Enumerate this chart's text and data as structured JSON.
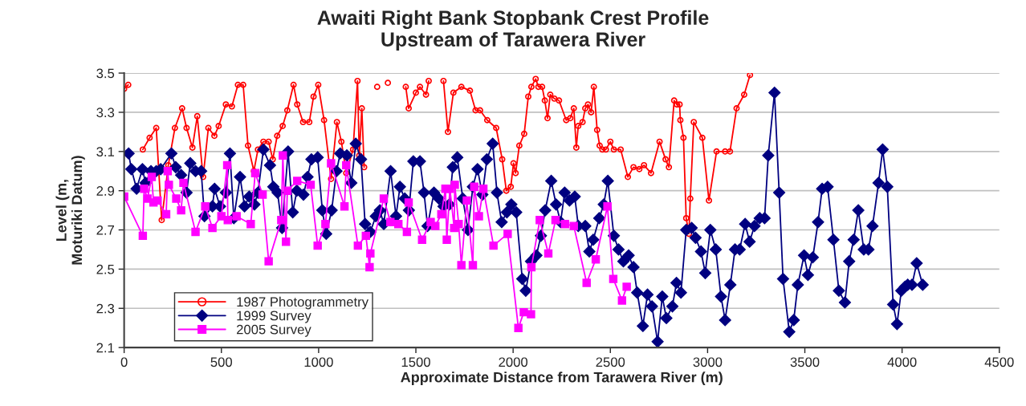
{
  "chart_data": {
    "type": "line",
    "title": "Awaiti Right Bank Stopbank Crest Profile\nUpstream of Tarawera River",
    "xlabel": "Approximate Distance from Tarawera River (m)",
    "ylabel": "Level (m,\nMoturiki Datum)",
    "xlim": [
      0,
      4500
    ],
    "xticks": [
      0,
      500,
      1000,
      1500,
      2000,
      2500,
      3000,
      3500,
      4000,
      4500
    ],
    "ylim": [
      2.1,
      3.5
    ],
    "yticks": [
      2.1,
      2.3,
      2.5,
      2.7,
      2.9,
      3.1,
      3.3,
      3.5
    ],
    "grid": "y",
    "legend": "bottom left",
    "line_style": "solid",
    "series": [
      {
        "name": "1987 Photogrammetry",
        "color": "#ff0000",
        "marker": "circle",
        "x": [
          0,
          21,
          60,
          96,
          131,
          165,
          193,
          227,
          261,
          298,
          321,
          351,
          376,
          406,
          433,
          464,
          486,
          523,
          554,
          585,
          612,
          637,
          667,
          688,
          716,
          743,
          764,
          787,
          815,
          839,
          871,
          890,
          920,
          952,
          974,
          998,
          1028,
          1064,
          1094,
          1117,
          1142,
          1177,
          1200,
          1209,
          1222,
          1234,
          1265,
          1301,
          1330,
          1356,
          1400,
          1448,
          1463,
          1500,
          1521,
          1552,
          1566,
          1600,
          1642,
          1665,
          1693,
          1734,
          1778,
          1807,
          1830,
          1867,
          1913,
          1944,
          1965,
          1988,
          2002,
          2013,
          2032,
          2057,
          2078,
          2094,
          2116,
          2130,
          2149,
          2163,
          2177,
          2191,
          2212,
          2236,
          2273,
          2294,
          2312,
          2325,
          2335,
          2357,
          2371,
          2385,
          2401,
          2415,
          2432,
          2445,
          2459,
          2477,
          2500,
          2518,
          2553,
          2590,
          2619,
          2649,
          2673,
          2709,
          2753,
          2784,
          2801,
          2828,
          2842,
          2856,
          2860,
          2876,
          2890,
          2904,
          2911,
          2929,
          2973,
          3007,
          3046,
          3090,
          3115,
          3149,
          3188,
          3218
        ],
        "values": [
          3.42,
          3.44,
          null,
          3.11,
          3.17,
          3.22,
          2.75,
          3.03,
          3.22,
          3.32,
          3.22,
          3.12,
          3.28,
          2.97,
          3.22,
          3.18,
          3.23,
          3.34,
          3.33,
          3.44,
          3.44,
          3.13,
          3.0,
          3.11,
          3.15,
          3.15,
          3.06,
          3.18,
          3.23,
          3.31,
          3.44,
          3.34,
          3.25,
          3.25,
          3.38,
          3.44,
          3.26,
          2.96,
          3.25,
          3.15,
          2.99,
          3.11,
          3.46,
          3.08,
          3.32,
          3.02,
          null,
          3.43,
          null,
          3.45,
          null,
          3.43,
          3.32,
          3.4,
          3.43,
          3.39,
          3.46,
          null,
          3.46,
          3.2,
          3.4,
          3.43,
          3.41,
          3.31,
          3.31,
          3.26,
          3.22,
          3.06,
          2.9,
          2.92,
          3.04,
          2.99,
          3.13,
          3.19,
          3.38,
          3.43,
          3.47,
          3.43,
          3.43,
          3.36,
          3.27,
          3.39,
          3.37,
          3.36,
          3.26,
          3.27,
          3.32,
          3.12,
          3.23,
          3.25,
          3.32,
          3.34,
          3.3,
          3.43,
          3.21,
          3.13,
          3.11,
          3.11,
          3.15,
          3.11,
          3.11,
          2.97,
          3.02,
          3.01,
          3.03,
          2.99,
          3.15,
          3.06,
          3.02,
          3.36,
          3.34,
          3.34,
          3.26,
          3.17,
          2.76,
          2.68,
          2.86,
          3.25,
          3.17,
          2.85,
          3.1,
          3.1,
          3.1,
          3.32,
          3.39,
          3.49
        ]
      },
      {
        "name": "1999 Survey",
        "color": "#000080",
        "marker": "diamond",
        "x": [
          23,
          37,
          64,
          94,
          110,
          138,
          165,
          188,
          243,
          265,
          293,
          321,
          340,
          367,
          396,
          413,
          454,
          465,
          493,
          523,
          544,
          564,
          596,
          619,
          643,
          670,
          688,
          716,
          750,
          767,
          789,
          812,
          843,
          867,
          888,
          922,
          943,
          963,
          995,
          1019,
          1039,
          1067,
          1092,
          1111,
          1145,
          1168,
          1191,
          1218,
          1239,
          1266,
          1294,
          1315,
          1335,
          1370,
          1398,
          1418,
          1443,
          1464,
          1487,
          1521,
          1542,
          1560,
          1593,
          1618,
          1642,
          1672,
          1690,
          1713,
          1741,
          1768,
          1793,
          1817,
          1842,
          1865,
          1895,
          1917,
          1941,
          1968,
          1991,
          2016,
          2047,
          2065,
          2092,
          2120,
          2143,
          2165,
          2196,
          2221,
          2244,
          2265,
          2290,
          2317,
          2335,
          2371,
          2392,
          2412,
          2443,
          2466,
          2487,
          2518,
          2542,
          2567,
          2594,
          2619,
          2638,
          2667,
          2691,
          2714,
          2743,
          2767,
          2788,
          2819,
          2840,
          2863,
          2890,
          2918,
          2938,
          2966,
          2988,
          3014,
          3042,
          3069,
          3090,
          3117,
          3141,
          3165,
          3193,
          3216,
          3241,
          3268,
          3293,
          3312,
          3344,
          3368,
          3388,
          3420,
          3443,
          3464,
          3496,
          3516,
          3541,
          3568,
          3589,
          3617,
          3647,
          3675,
          3706,
          3728,
          3751,
          3775,
          3803,
          3827,
          3848,
          3879,
          3900,
          3924,
          3954,
          3974,
          3996,
          4015,
          4029,
          4051,
          4075,
          4106
        ],
        "values": [
          3.09,
          3.01,
          2.91,
          3.01,
          2.94,
          3.0,
          3.0,
          3.01,
          3.09,
          3.02,
          2.98,
          2.89,
          3.04,
          3.0,
          3.0,
          2.77,
          2.82,
          2.91,
          2.82,
          2.89,
          3.09,
          2.76,
          2.97,
          2.82,
          2.87,
          2.83,
          2.89,
          3.11,
          3.03,
          2.92,
          2.89,
          2.71,
          3.1,
          2.79,
          2.9,
          2.88,
          2.97,
          3.06,
          3.07,
          2.8,
          2.68,
          2.8,
          3.0,
          3.09,
          3.08,
          2.94,
          3.14,
          3.06,
          2.73,
          2.69,
          2.77,
          2.8,
          2.73,
          3.0,
          2.77,
          2.92,
          2.86,
          2.8,
          3.05,
          3.05,
          2.89,
          2.72,
          2.89,
          2.86,
          2.82,
          2.83,
          3.02,
          3.07,
          2.86,
          2.7,
          2.92,
          3.01,
          2.88,
          3.06,
          3.14,
          2.89,
          2.74,
          2.79,
          2.83,
          2.79,
          2.45,
          2.39,
          2.54,
          2.57,
          2.67,
          2.8,
          2.95,
          2.83,
          2.74,
          2.89,
          2.85,
          2.87,
          2.72,
          2.72,
          2.59,
          2.65,
          2.76,
          2.83,
          2.95,
          2.67,
          2.6,
          2.54,
          2.57,
          2.51,
          2.38,
          2.21,
          2.37,
          2.31,
          2.13,
          2.36,
          2.25,
          2.31,
          2.43,
          2.38,
          2.7,
          2.71,
          2.66,
          2.59,
          2.48,
          2.7,
          2.6,
          2.36,
          2.24,
          2.42,
          2.6,
          2.6,
          2.73,
          2.64,
          2.72,
          2.76,
          2.76,
          3.08,
          3.4,
          2.89,
          2.45,
          2.18,
          2.24,
          2.42,
          2.57,
          2.47,
          2.56,
          2.74,
          2.91,
          2.92,
          2.65,
          2.39,
          2.33,
          2.54,
          2.65,
          2.8,
          2.6,
          2.6,
          2.72,
          2.94,
          3.11,
          2.92,
          2.32,
          2.22,
          2.39,
          2.41,
          2.42,
          2.42,
          2.53,
          2.42
        ]
      },
      {
        "name": "2005 Survey",
        "color": "#ff00ff",
        "marker": "square",
        "x": [
          0,
          96,
          103,
          120,
          142,
          151,
          172,
          216,
          224,
          230,
          268,
          293,
          305,
          367,
          417,
          454,
          500,
          530,
          533,
          578,
          651,
          674,
          712,
          743,
          808,
          816,
          832,
          839,
          890,
          959,
          995,
          1035,
          1064,
          1133,
          1142,
          1202,
          1243,
          1262,
          1266,
          1335,
          1369,
          1410,
          1454,
          1463,
          1532,
          1576,
          1600,
          1631,
          1652,
          1659,
          1675,
          1697,
          1700,
          1720,
          1734,
          1762,
          1793,
          1800,
          1824,
          1847,
          1899,
          1972,
          2027,
          2055,
          2092,
          2094,
          2137,
          2181,
          2218,
          2267,
          2312,
          2378,
          2425,
          2485,
          2515,
          2560,
          2584
        ],
        "values": [
          2.87,
          2.67,
          2.91,
          2.86,
          2.97,
          2.84,
          2.85,
          2.78,
          3.0,
          2.93,
          2.86,
          2.8,
          2.94,
          2.69,
          2.82,
          2.71,
          2.77,
          3.03,
          2.75,
          2.77,
          2.73,
          2.99,
          2.88,
          2.54,
          2.75,
          3.08,
          2.64,
          2.9,
          2.95,
          2.93,
          2.62,
          2.73,
          3.04,
          2.82,
          3.03,
          2.62,
          2.67,
          2.51,
          2.58,
          2.86,
          2.74,
          2.73,
          2.69,
          2.84,
          2.65,
          2.74,
          2.72,
          2.78,
          2.91,
          2.65,
          2.91,
          2.71,
          2.93,
          2.73,
          2.52,
          2.85,
          2.52,
          2.92,
          2.77,
          2.91,
          2.62,
          2.68,
          2.2,
          2.28,
          2.27,
          2.51,
          2.75,
          2.58,
          2.75,
          2.73,
          2.72,
          2.43,
          2.55,
          2.82,
          2.45,
          2.34,
          2.41
        ]
      }
    ]
  }
}
